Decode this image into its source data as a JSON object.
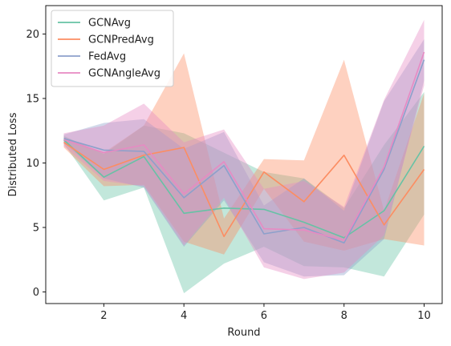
{
  "chart_data": {
    "type": "line",
    "xlabel": "Round",
    "ylabel": "Distributed Loss",
    "xlim": [
      0.55,
      10.45
    ],
    "ylim": [
      -0.9,
      22.2
    ],
    "xticks": [
      2,
      4,
      6,
      8,
      10
    ],
    "yticks": [
      0,
      5,
      10,
      15,
      20
    ],
    "grid": false,
    "legend_position": "upper-left",
    "x": [
      1,
      2,
      3,
      4,
      5,
      6,
      7,
      8,
      9,
      10
    ],
    "series": [
      {
        "name": "GCNAvg",
        "color": "#66c2a5",
        "values": [
          11.8,
          8.9,
          10.5,
          6.1,
          6.5,
          6.4,
          5.4,
          4.2,
          6.3,
          11.3
        ],
        "lower": [
          11.5,
          7.1,
          8.1,
          -0.1,
          2.2,
          3.5,
          2.0,
          1.9,
          1.2,
          6.0
        ],
        "upper": [
          12.1,
          10.7,
          12.9,
          12.3,
          10.8,
          9.3,
          8.8,
          6.5,
          11.4,
          15.5
        ]
      },
      {
        "name": "GCNPredAvg",
        "color": "#fc8d62",
        "values": [
          11.6,
          9.5,
          10.6,
          11.2,
          4.3,
          9.3,
          7.0,
          10.6,
          5.2,
          9.5
        ],
        "lower": [
          11.2,
          8.2,
          8.3,
          3.9,
          2.9,
          8.0,
          3.9,
          3.2,
          4.1,
          3.6
        ],
        "upper": [
          12.0,
          10.8,
          12.9,
          18.5,
          5.7,
          10.3,
          10.2,
          18.0,
          6.3,
          15.4
        ]
      },
      {
        "name": "FedAvg",
        "color": "#8da0cb",
        "values": [
          11.9,
          11.0,
          10.9,
          7.3,
          9.8,
          4.5,
          5.0,
          3.8,
          9.5,
          18.0
        ],
        "lower": [
          11.6,
          8.8,
          8.1,
          3.5,
          7.1,
          2.3,
          1.2,
          1.3,
          4.1,
          16.4
        ],
        "upper": [
          12.2,
          13.1,
          13.4,
          11.1,
          12.4,
          6.7,
          8.8,
          6.3,
          14.8,
          19.6
        ]
      },
      {
        "name": "GCNAngleAvg",
        "color": "#e78ac3",
        "values": [
          11.8,
          10.8,
          11.4,
          7.6,
          10.1,
          4.9,
          4.8,
          4.0,
          9.7,
          18.6
        ],
        "lower": [
          11.3,
          8.6,
          8.2,
          3.6,
          7.3,
          1.9,
          1.0,
          1.5,
          4.4,
          16.0
        ],
        "upper": [
          12.3,
          12.9,
          14.6,
          11.6,
          12.6,
          8.0,
          8.6,
          6.6,
          14.9,
          21.1
        ]
      }
    ]
  }
}
